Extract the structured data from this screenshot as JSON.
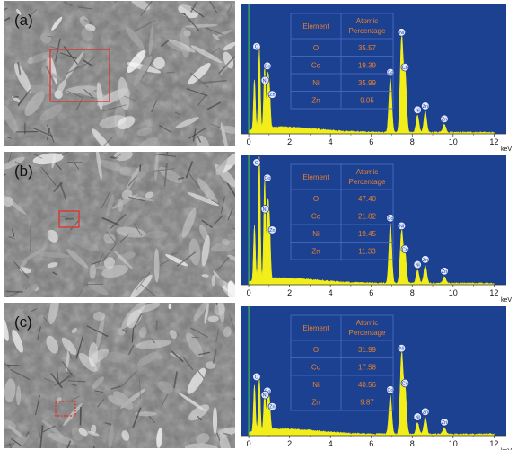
{
  "panels": [
    {
      "label": "(a)",
      "table": {
        "col1": "Element",
        "col2_line1": "Atomic",
        "col2_line2": "Percentage",
        "rows": [
          {
            "element": "O",
            "value": "35.57"
          },
          {
            "element": "Co",
            "value": "19.39"
          },
          {
            "element": "Ni",
            "value": "35.99"
          },
          {
            "element": "Zn",
            "value": "9.05"
          }
        ]
      }
    },
    {
      "label": "(b)",
      "table": {
        "col1": "Element",
        "col2_line1": "Atomic",
        "col2_line2": "Percentage",
        "rows": [
          {
            "element": "O",
            "value": "47.40"
          },
          {
            "element": "Co",
            "value": "21.82"
          },
          {
            "element": "Ni",
            "value": "19.45"
          },
          {
            "element": "Zn",
            "value": "11.33"
          }
        ]
      }
    },
    {
      "label": "(c)",
      "table": {
        "col1": "Element",
        "col2_line1": "Atomic",
        "col2_line2": "Percentage",
        "rows": [
          {
            "element": "O",
            "value": "31.99"
          },
          {
            "element": "Co",
            "value": "17.58"
          },
          {
            "element": "Ni",
            "value": "40.56"
          },
          {
            "element": "Zn",
            "value": "9.87"
          }
        ]
      }
    }
  ],
  "axis": {
    "ticks": [
      "0",
      "2",
      "4",
      "6",
      "8",
      "10",
      "12"
    ],
    "unit": "keV",
    "xlim": [
      -0.4,
      12.6
    ]
  },
  "colors": {
    "plot_bg": "#1d4191",
    "spectrum": "#f2ee1a",
    "table_border": "#4b6fc7",
    "table_text": "#e8802e",
    "roi": "#e0302a"
  },
  "spectra": [
    {
      "peaks": [
        [
          0.28,
          0.38
        ],
        [
          0.52,
          0.62
        ],
        [
          0.78,
          0.48
        ],
        [
          0.93,
          0.38
        ],
        [
          1.02,
          0.28
        ],
        [
          6.93,
          0.42
        ],
        [
          7.48,
          0.73
        ],
        [
          7.65,
          0.46
        ],
        [
          8.26,
          0.13
        ],
        [
          8.64,
          0.16
        ],
        [
          9.57,
          0.06
        ]
      ],
      "markers": [
        [
          0.52,
          "O"
        ],
        [
          0.78,
          "Co"
        ],
        [
          0.93,
          "Ni"
        ],
        [
          1.02,
          "Zn"
        ],
        [
          6.93,
          "Co"
        ],
        [
          7.48,
          "Ni"
        ],
        [
          7.65,
          "Co"
        ],
        [
          8.26,
          "Ni"
        ],
        [
          8.64,
          "Zn"
        ],
        [
          9.57,
          "Zn"
        ]
      ],
      "roi": {
        "x": 52,
        "y": 54,
        "w": 66,
        "h": 58
      }
    },
    {
      "peaks": [
        [
          0.28,
          0.42
        ],
        [
          0.52,
          0.96
        ],
        [
          0.78,
          0.78
        ],
        [
          0.93,
          0.55
        ],
        [
          1.02,
          0.4
        ],
        [
          6.93,
          0.46
        ],
        [
          7.48,
          0.4
        ],
        [
          7.65,
          0.22
        ],
        [
          8.26,
          0.1
        ],
        [
          8.64,
          0.14
        ],
        [
          9.57,
          0.05
        ]
      ],
      "markers": [
        [
          0.52,
          "O"
        ],
        [
          0.78,
          "Co"
        ],
        [
          0.93,
          "Ni"
        ],
        [
          1.02,
          "Zn"
        ],
        [
          6.93,
          "Co"
        ],
        [
          7.48,
          "Ni"
        ],
        [
          7.65,
          "Co"
        ],
        [
          8.26,
          "Ni"
        ],
        [
          8.64,
          "Zn"
        ],
        [
          9.57,
          "Zn"
        ]
      ],
      "roi": {
        "x": 62,
        "y": 66,
        "w": 22,
        "h": 18
      }
    },
    {
      "peaks": [
        [
          0.28,
          0.35
        ],
        [
          0.52,
          0.4
        ],
        [
          0.78,
          0.3
        ],
        [
          0.93,
          0.28
        ],
        [
          1.02,
          0.2
        ],
        [
          6.93,
          0.3
        ],
        [
          7.48,
          0.62
        ],
        [
          7.65,
          0.35
        ],
        [
          8.26,
          0.09
        ],
        [
          8.64,
          0.13
        ],
        [
          9.57,
          0.05
        ]
      ],
      "markers": [
        [
          0.52,
          "O"
        ],
        [
          0.78,
          "Co"
        ],
        [
          0.93,
          "Ni"
        ],
        [
          1.02,
          "Zn"
        ],
        [
          6.93,
          "Co"
        ],
        [
          7.48,
          "Ni"
        ],
        [
          7.65,
          "Co"
        ],
        [
          8.26,
          "Ni"
        ],
        [
          8.64,
          "Zn"
        ],
        [
          9.57,
          "Zn"
        ]
      ],
      "roi": {
        "x": 58,
        "y": 110,
        "w": 22,
        "h": 16
      }
    }
  ]
}
